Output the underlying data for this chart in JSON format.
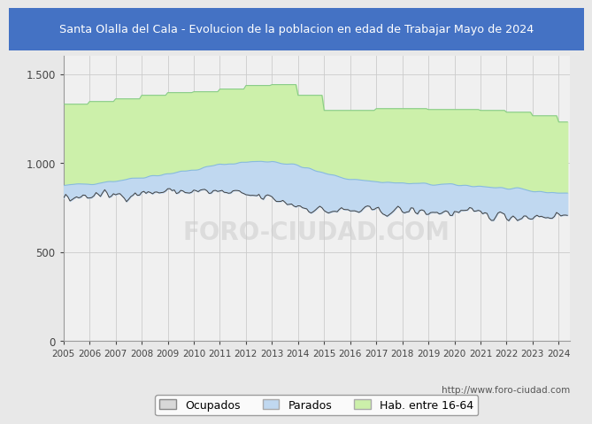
{
  "title": "Santa Olalla del Cala - Evolucion de la poblacion en edad de Trabajar Mayo de 2024",
  "title_bg_color": "#4472c4",
  "title_text_color": "#ffffff",
  "ylabel_ticks": [
    "0",
    "500",
    "1.000",
    "1.500"
  ],
  "yticks": [
    0,
    500,
    1000,
    1500
  ],
  "ylim": [
    0,
    1600
  ],
  "xlim_start": 2005,
  "xlim_end": 2024.42,
  "xticks": [
    2005,
    2006,
    2007,
    2008,
    2009,
    2010,
    2011,
    2012,
    2013,
    2014,
    2015,
    2016,
    2017,
    2018,
    2019,
    2020,
    2021,
    2022,
    2023,
    2024
  ],
  "legend_labels": [
    "Ocupados",
    "Parados",
    "Hab. entre 16-64"
  ],
  "watermark": "http://www.foro-ciudad.com",
  "fill_hab_color": "#ccf0aa",
  "fill_parados_color": "#c0d8f0",
  "line_ocupados_color": "#404040",
  "line_parados_color": "#88bbdd",
  "line_hab_color": "#88cc88",
  "background_color": "#e8e8e8",
  "plot_bg_color": "#f0f0f0",
  "grid_color": "#cccccc"
}
